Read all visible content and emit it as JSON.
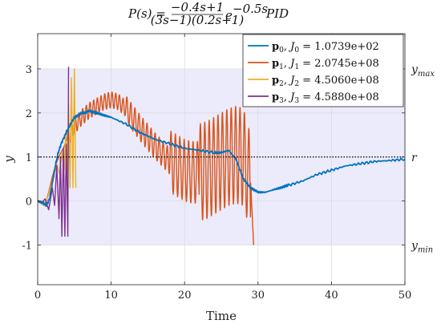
{
  "chart_data": {
    "type": "line",
    "title_text": "P(s) = (−0.4s+1) / ((3s−1)(0.2s+1)) e^(−0.5s),    PID",
    "title_left": "P(s) =",
    "title_num": "−0.4s+1",
    "title_den": "(3s−1)(0.2s+1)",
    "title_exp_base": "e",
    "title_exp": "−0.5s",
    "title_suffix": "PID",
    "xlabel": "Time",
    "ylabel": "y",
    "xlim": [
      0,
      50
    ],
    "ylim": [
      -1.9,
      3.8
    ],
    "xticks": [
      "0",
      "10",
      "20",
      "30",
      "40",
      "50"
    ],
    "yticks": [
      "-1",
      "0",
      "1",
      "2",
      "3"
    ],
    "grid": true,
    "legend_position": "top-right",
    "reference": {
      "label": "r",
      "value": 1
    },
    "band": {
      "upper_label": "y_max",
      "lower_label": "y_min",
      "upper": 3,
      "lower": -1
    },
    "series": [
      {
        "name": "p0, J0 = 1.0739e+02",
        "color": "#0072BD",
        "x": [
          0,
          0.8,
          1.2,
          1.6,
          2.0,
          2.4,
          2.8,
          3.2,
          3.6,
          4.0,
          4.5,
          5.0,
          5.5,
          6.0,
          6.5,
          7.0,
          8.0,
          9.0,
          10.0,
          12.0,
          14.0,
          16.0,
          18.0,
          20.0,
          22.0,
          24.0,
          25.0,
          26.0,
          27.0,
          28.0,
          29.0,
          30.0,
          31.0,
          32.0,
          33.0,
          34.0,
          36.0,
          38.0,
          40.0,
          42.0,
          44.0,
          46.0,
          48.0,
          50.0
        ],
        "y": [
          0.0,
          -0.05,
          -0.1,
          0.05,
          0.4,
          0.8,
          1.1,
          1.3,
          1.45,
          1.6,
          1.75,
          1.9,
          1.95,
          2.0,
          2.0,
          2.05,
          2.0,
          1.95,
          1.9,
          1.75,
          1.55,
          1.4,
          1.3,
          1.2,
          1.15,
          1.1,
          1.1,
          1.15,
          0.95,
          0.5,
          0.3,
          0.2,
          0.2,
          0.25,
          0.3,
          0.35,
          0.45,
          0.6,
          0.7,
          0.8,
          0.85,
          0.9,
          0.92,
          0.95
        ]
      },
      {
        "name": "p1, J1 = 2.0745e+08",
        "color": "#D95319",
        "x": [
          0,
          1.0,
          1.5,
          2.0,
          2.5,
          3.0,
          3.5,
          4.0,
          5.0,
          6.0,
          7.0,
          8.0,
          9.0,
          10.0,
          11.0,
          12.0,
          14.0,
          16.0,
          18.0,
          20.0,
          21.0,
          22.0,
          23.0,
          24.0,
          25.0,
          26.0,
          27.0,
          28.0,
          29.0,
          29.4
        ],
        "y": [
          0.0,
          -0.1,
          0.2,
          0.55,
          0.85,
          1.05,
          1.2,
          1.4,
          1.7,
          1.9,
          2.05,
          2.15,
          2.25,
          2.3,
          2.25,
          2.1,
          1.65,
          1.25,
          0.9,
          0.7,
          0.65,
          0.65,
          0.7,
          0.8,
          0.9,
          1.0,
          1.05,
          1.0,
          0.4,
          -1.0
        ],
        "oscillation": {
          "segments": [
            {
              "t_start": 4.0,
              "t_end": 12.0,
              "amplitude": 0.18,
              "period": 0.5
            },
            {
              "t_start": 12.0,
              "t_end": 18.0,
              "amplitude": 0.3,
              "period": 0.55
            },
            {
              "t_start": 18.0,
              "t_end": 22.0,
              "amplitude": 0.7,
              "period": 0.6
            },
            {
              "t_start": 22.0,
              "t_end": 29.0,
              "amplitude": 1.1,
              "period": 0.6
            }
          ]
        }
      },
      {
        "name": "p2, J2 = 4.5060e+08",
        "color": "#EDB120",
        "x": [
          0,
          0.8,
          1.4,
          2.0,
          2.6,
          3.0,
          3.3,
          3.6,
          3.8,
          4.0,
          4.2,
          4.4,
          4.6,
          4.8,
          5.0,
          5.2
        ],
        "y": [
          0.0,
          -0.1,
          0.1,
          0.45,
          0.85,
          0.6,
          1.1,
          0.7,
          1.5,
          0.5,
          2.2,
          0.3,
          2.8,
          0.3,
          3.0,
          0.3
        ]
      },
      {
        "name": "p3, J3 = 4.5880e+08",
        "color": "#7E2F8E",
        "x": [
          0,
          0.5,
          1.0,
          1.5,
          2.0,
          2.3,
          2.6,
          2.9,
          3.1,
          3.3,
          3.5,
          3.7,
          3.9,
          4.1,
          4.2
        ],
        "y": [
          0.0,
          -0.05,
          0.05,
          -0.2,
          0.3,
          -0.1,
          0.8,
          -0.4,
          1.0,
          -0.8,
          1.2,
          -0.8,
          1.3,
          -0.8,
          3.05
        ]
      }
    ]
  }
}
